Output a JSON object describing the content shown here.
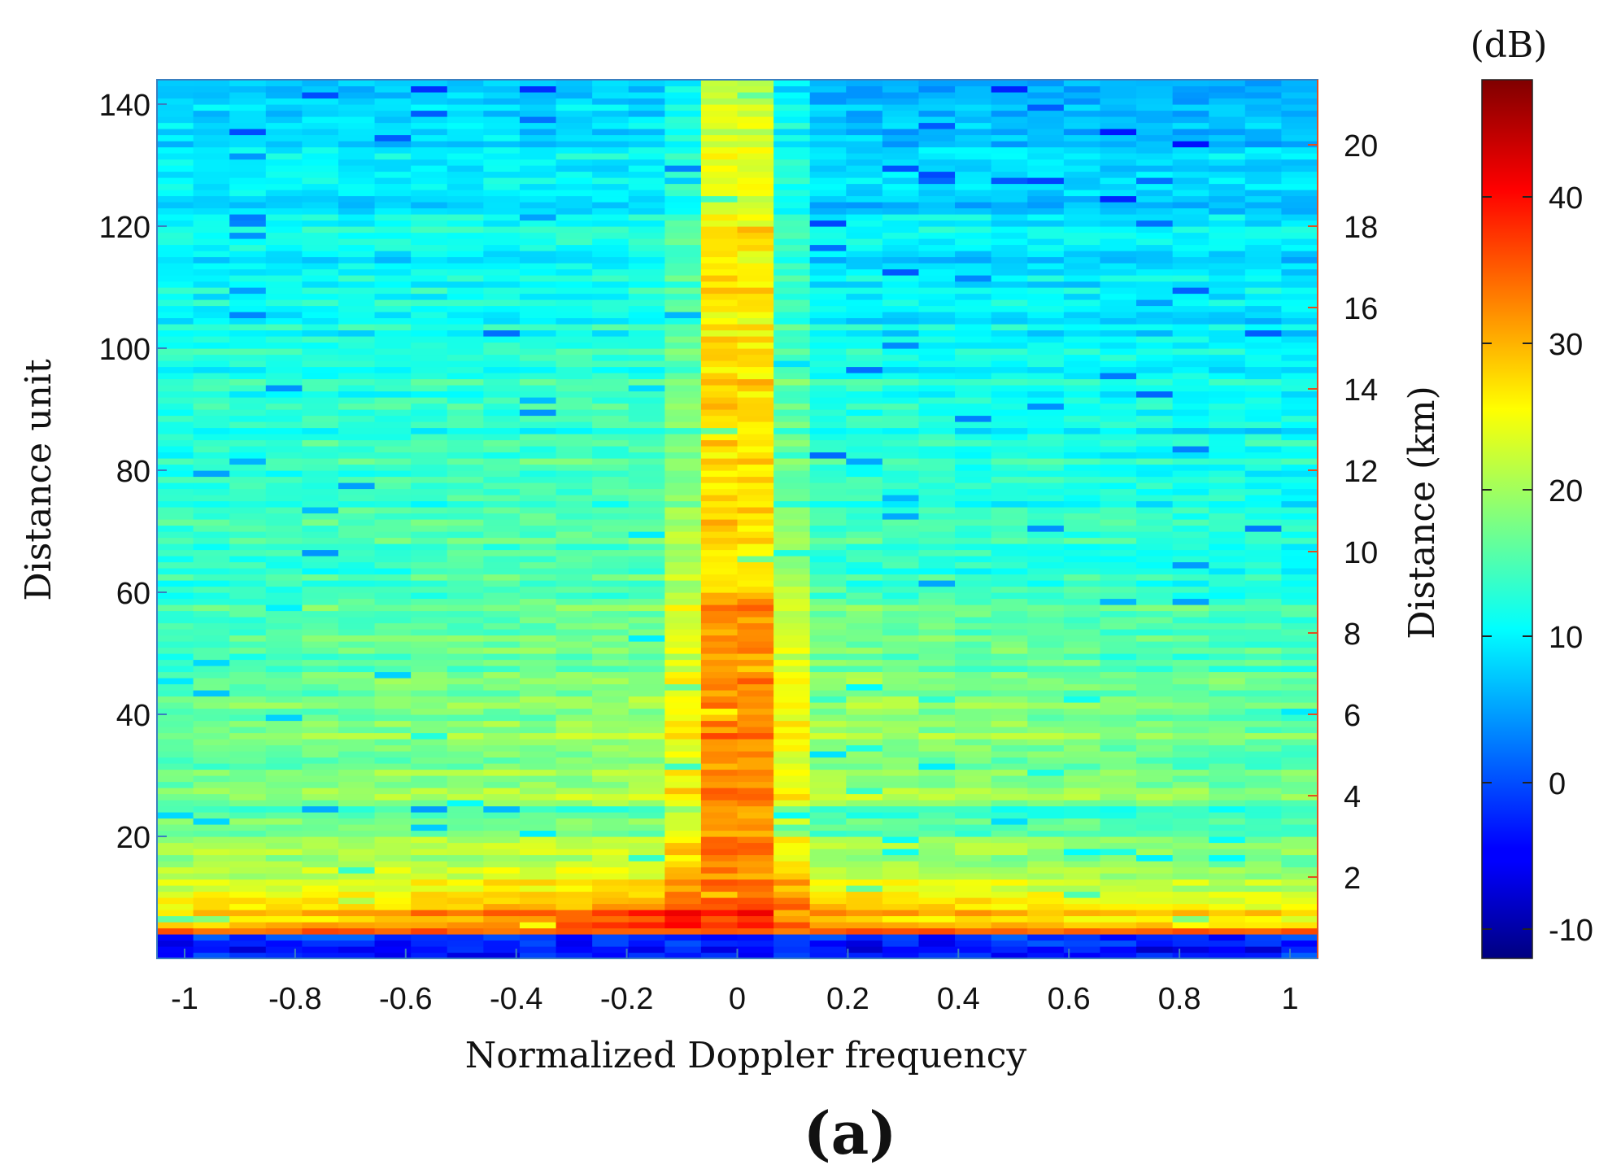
{
  "chart_data": {
    "type": "heatmap",
    "title": "",
    "panel_label": "(a)",
    "xlabel": "Normalized Doppler frequency",
    "ylabel": "Distance unit",
    "y2label": "Distance (km)",
    "colorbar_label": "(dB)",
    "colormap": "jet",
    "xlim": [
      -1.05,
      1.05
    ],
    "ylim": [
      0,
      144
    ],
    "y2lim": [
      0,
      21.6
    ],
    "clim": [
      -12,
      48
    ],
    "xticks": [
      -1,
      -0.8,
      -0.6,
      -0.4,
      -0.2,
      0,
      0.2,
      0.4,
      0.6,
      0.8,
      1
    ],
    "xtick_labels": [
      "-1",
      "-0.8",
      "-0.6",
      "-0.4",
      "-0.2",
      "0",
      "0.2",
      "0.4",
      "0.6",
      "0.8",
      "1"
    ],
    "yticks": [
      20,
      40,
      60,
      80,
      100,
      120,
      140
    ],
    "ytick_labels": [
      "20",
      "40",
      "60",
      "80",
      "100",
      "120",
      "140"
    ],
    "y2ticks": [
      2,
      4,
      6,
      8,
      10,
      12,
      14,
      16,
      18,
      20
    ],
    "y2tick_labels": [
      "2",
      "4",
      "6",
      "8",
      "10",
      "12",
      "14",
      "16",
      "18",
      "20"
    ],
    "cticks": [
      -10,
      0,
      10,
      20,
      30,
      40
    ],
    "ctick_labels": [
      "-10",
      "0",
      "10",
      "20",
      "30",
      "40"
    ],
    "grid": false,
    "x_columns": 32,
    "y_rows": 144,
    "description_values": {
      "zero_doppler_peak_db": 35,
      "near_range_clutter_db": 38,
      "far_range_background_db": 10
    }
  }
}
